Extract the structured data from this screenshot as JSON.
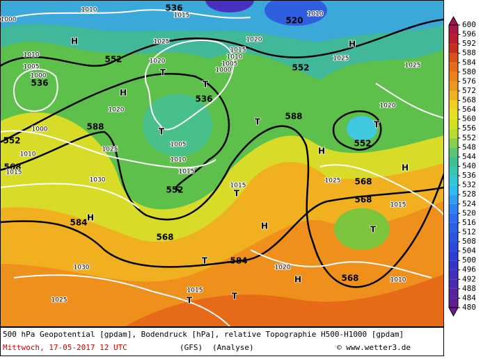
{
  "map": {
    "contour_labels": [
      "536",
      "520",
      "536",
      "552",
      "536",
      "552",
      "552",
      "588",
      "588",
      "552",
      "568",
      "552",
      "568",
      "568",
      "584",
      "568",
      "584",
      "568"
    ],
    "isobar_labels": [
      "1010",
      "1015",
      "1010",
      "1000",
      "1025",
      "1020",
      "1015",
      "1010",
      "1005",
      "1000",
      "1020",
      "1010",
      "1005",
      "1000",
      "1025",
      "1025",
      "1020",
      "1020",
      "1000",
      "1005",
      "1025",
      "1010",
      "1010",
      "1015",
      "1015",
      "1030",
      "1015",
      "1025",
      "1015",
      "1030",
      "1020",
      "1010",
      "1025",
      "1015"
    ],
    "pressure_centers": [
      "H",
      "H",
      "T",
      "H",
      "T",
      "T",
      "T",
      "T",
      "H",
      "H",
      "T",
      "H",
      "H",
      "T",
      "T",
      "H",
      "T",
      "T"
    ]
  },
  "colorbar": {
    "ticks": [
      480,
      484,
      488,
      492,
      496,
      500,
      504,
      508,
      512,
      516,
      520,
      524,
      528,
      532,
      536,
      540,
      544,
      548,
      552,
      556,
      560,
      564,
      568,
      572,
      576,
      580,
      584,
      588,
      592,
      596,
      600
    ]
  },
  "caption": {
    "line1": "500 hPa Geopotential [gpdam], Bodendruck [hPa], relative Topographie H500-H1000 [gpdam]",
    "date": "Mittwoch, 17-05-2017  12 UTC",
    "model": "(GFS)",
    "run": "(Analyse)",
    "credit": "© www.wetter3.de"
  }
}
